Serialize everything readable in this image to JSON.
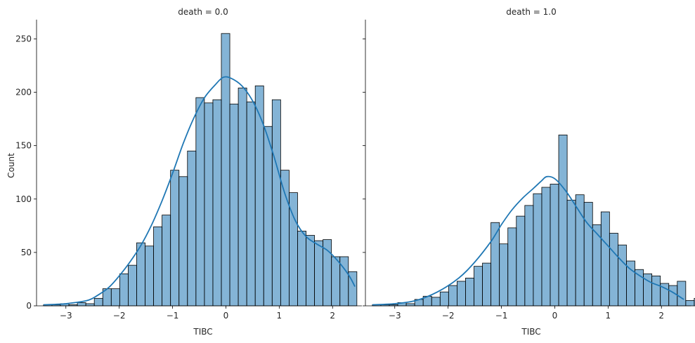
{
  "chart_data": [
    {
      "type": "bar",
      "title": "death = 0.0",
      "xlabel": "TIBC",
      "ylabel": "Count",
      "xlim": [
        -3.55,
        2.55
      ],
      "ylim": [
        0,
        268
      ],
      "grid": false,
      "x_ticks": [
        -3,
        -2,
        -1,
        0,
        1,
        2
      ],
      "x_tick_labels": [
        "−3",
        "−2",
        "−1",
        "0",
        "1",
        "2"
      ],
      "y_ticks": [
        0,
        50,
        100,
        150,
        200,
        250
      ],
      "y_tick_labels": [
        "0",
        "50",
        "100",
        "150",
        "200",
        "250"
      ],
      "bin_start": -3.42,
      "bin_width": 0.1588,
      "values": [
        1,
        1,
        2,
        1,
        3,
        2,
        7,
        16,
        16,
        30,
        38,
        59,
        56,
        74,
        85,
        127,
        121,
        145,
        195,
        190,
        193,
        255,
        189,
        204,
        191,
        206,
        168,
        193,
        127,
        106,
        70,
        66,
        61,
        62,
        46,
        46,
        32
      ],
      "kde": {
        "x": [
          -3.42,
          -3.0,
          -2.6,
          -2.4,
          -2.2,
          -2.0,
          -1.8,
          -1.6,
          -1.4,
          -1.2,
          -1.0,
          -0.8,
          -0.6,
          -0.4,
          -0.2,
          -0.05,
          0.1,
          0.3,
          0.5,
          0.7,
          0.9,
          1.1,
          1.3,
          1.5,
          1.7,
          1.9,
          2.1,
          2.3,
          2.42
        ],
        "y": [
          1,
          2,
          5,
          10,
          17,
          28,
          41,
          56,
          75,
          98,
          124,
          152,
          176,
          195,
          207,
          214,
          213,
          206,
          192,
          170,
          140,
          106,
          80,
          65,
          58,
          52,
          42,
          29,
          18
        ]
      }
    },
    {
      "type": "bar",
      "title": "death = 1.0",
      "xlabel": "TIBC",
      "ylabel": "",
      "xlim": [
        -3.55,
        2.55
      ],
      "ylim": [
        0,
        268
      ],
      "grid": false,
      "x_ticks": [
        -3,
        -2,
        -1,
        0,
        1,
        2
      ],
      "x_tick_labels": [
        "−3",
        "−2",
        "−1",
        "0",
        "1",
        "2"
      ],
      "y_ticks": [
        0,
        50,
        100,
        150,
        200,
        250
      ],
      "bin_start": -3.42,
      "bin_width": 0.1588,
      "values": [
        1,
        1,
        1,
        3,
        2,
        6,
        9,
        8,
        13,
        19,
        23,
        26,
        37,
        40,
        78,
        58,
        73,
        84,
        94,
        105,
        111,
        114,
        160,
        99,
        104,
        97,
        76,
        88,
        68,
        57,
        42,
        34,
        30,
        28,
        21,
        19,
        23,
        5,
        7
      ],
      "kde": {
        "x": [
          -3.42,
          -3.0,
          -2.6,
          -2.2,
          -1.8,
          -1.5,
          -1.2,
          -1.0,
          -0.8,
          -0.6,
          -0.4,
          -0.25,
          -0.15,
          0.0,
          0.2,
          0.4,
          0.6,
          0.8,
          1.0,
          1.2,
          1.4,
          1.6,
          1.8,
          2.0,
          2.2,
          2.42
        ],
        "y": [
          1,
          2,
          5,
          13,
          26,
          41,
          60,
          76,
          90,
          101,
          110,
          117,
          121,
          119,
          108,
          93,
          78,
          67,
          56,
          45,
          35,
          28,
          22,
          18,
          13,
          6
        ]
      }
    }
  ]
}
